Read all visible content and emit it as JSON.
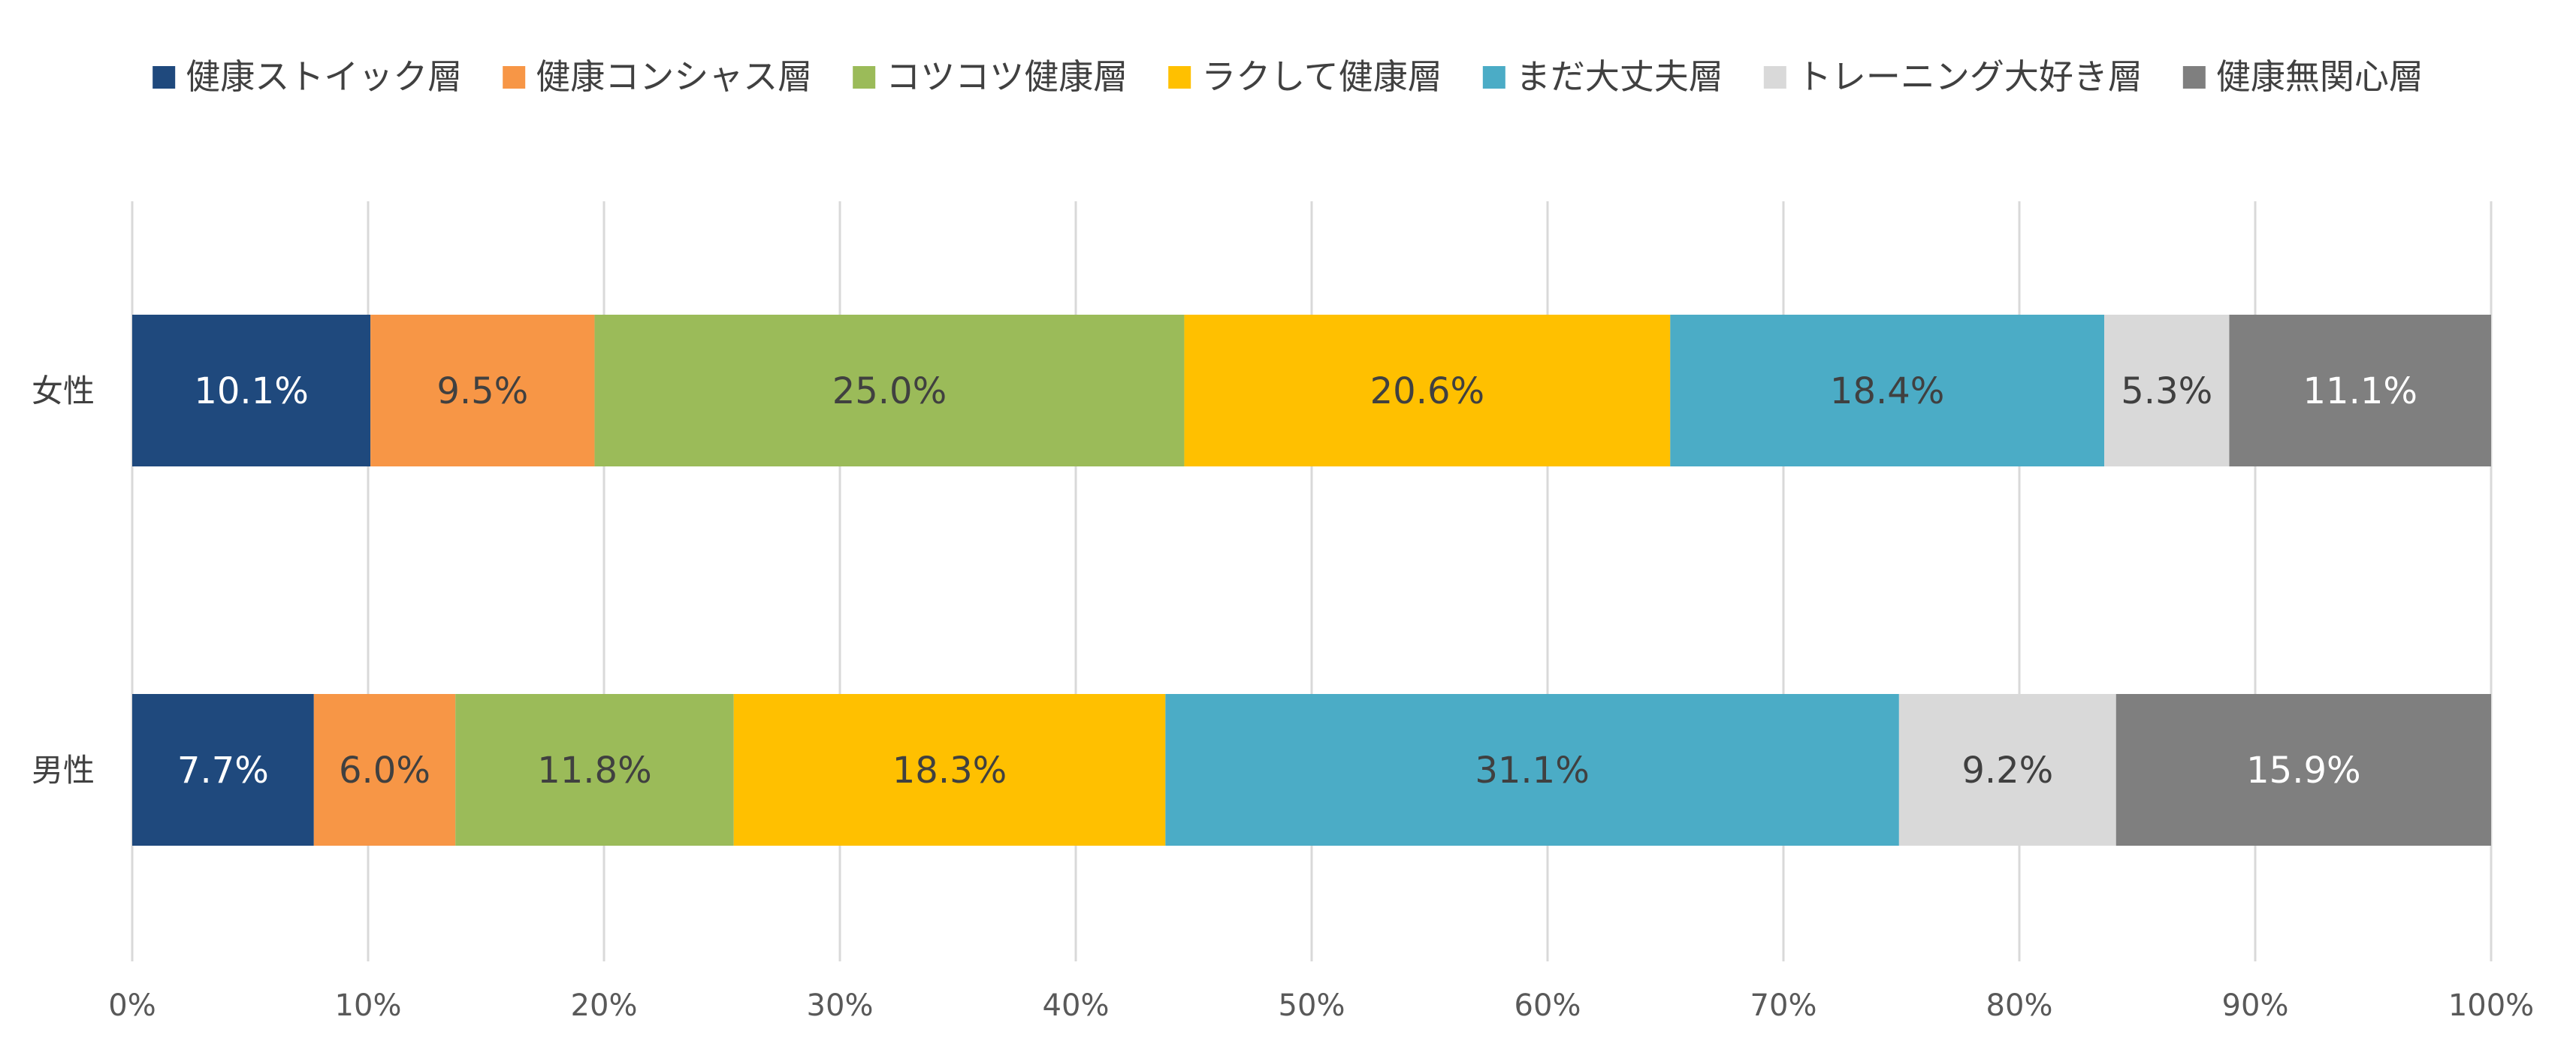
{
  "chart_data": {
    "type": "bar",
    "orientation": "horizontal",
    "stacked": true,
    "percent": true,
    "categories": [
      "女性",
      "男性"
    ],
    "series": [
      {
        "name": "健康ストイック層",
        "color": "#1F497D",
        "label_color": "#FFFFFF",
        "values": [
          10.1,
          7.7
        ],
        "labels": [
          "10.1%",
          "7.7%"
        ]
      },
      {
        "name": "健康コンシャス層",
        "color": "#F79646",
        "label_color": "#404040",
        "values": [
          9.5,
          6.0
        ],
        "labels": [
          "9.5%",
          "6.0%"
        ]
      },
      {
        "name": "コツコツ健康層",
        "color": "#9BBB59",
        "label_color": "#404040",
        "values": [
          25.0,
          11.8
        ],
        "labels": [
          "25.0%",
          "11.8%"
        ]
      },
      {
        "name": "ラクして健康層",
        "color": "#FFC000",
        "label_color": "#404040",
        "values": [
          20.6,
          18.3
        ],
        "labels": [
          "20.6%",
          "18.3%"
        ]
      },
      {
        "name": "まだ大丈夫層",
        "color": "#4BACC6",
        "label_color": "#404040",
        "values": [
          18.4,
          31.1
        ],
        "labels": [
          "18.4%",
          "31.1%"
        ]
      },
      {
        "name": "トレーニング大好き層",
        "color": "#D9D9D9",
        "label_color": "#404040",
        "values": [
          5.3,
          9.2
        ],
        "labels": [
          "5.3%",
          "9.2%"
        ]
      },
      {
        "name": "健康無関心層",
        "color": "#7F7F7F",
        "label_color": "#FFFFFF",
        "values": [
          11.1,
          15.9
        ],
        "labels": [
          "11.1%",
          "15.9%"
        ]
      }
    ],
    "xlim": [
      0,
      100
    ],
    "xticks": [
      "0%",
      "10%",
      "20%",
      "30%",
      "40%",
      "50%",
      "60%",
      "70%",
      "80%",
      "90%",
      "100%"
    ],
    "grid": true,
    "legend_position": "top"
  }
}
